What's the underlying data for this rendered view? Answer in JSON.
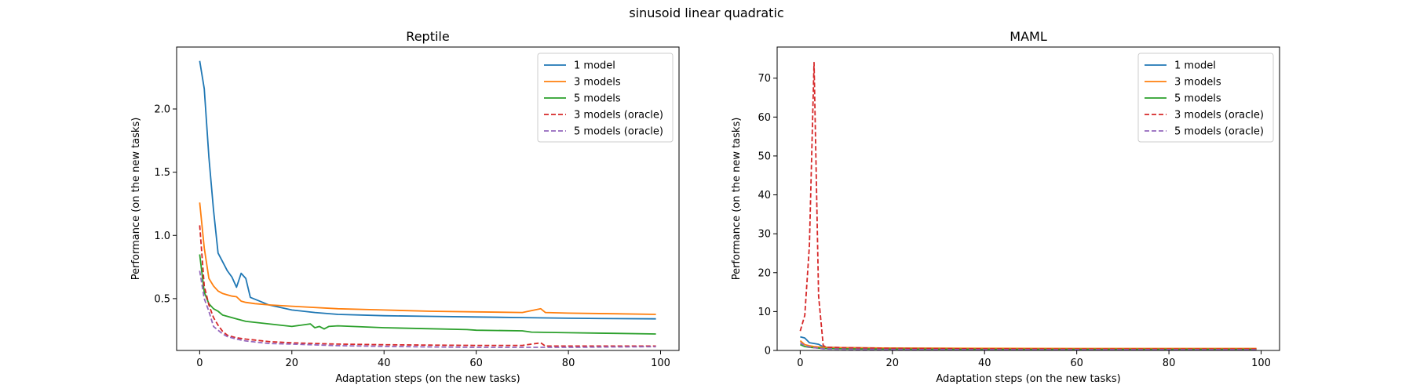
{
  "figure": {
    "suptitle": "sinusoid linear quadratic"
  },
  "chart_data": [
    {
      "type": "line",
      "title": "Reptile",
      "xlabel": "Adaptation steps (on the new tasks)",
      "ylabel": "Performance (on the new tasks)",
      "xlim": [
        -5,
        104
      ],
      "ylim": [
        0.09,
        2.49
      ],
      "xticks": [
        0,
        20,
        40,
        60,
        80,
        100
      ],
      "yticks": [
        0.5,
        1.0,
        1.5,
        2.0
      ],
      "ytick_labels": [
        "0.5",
        "1.0",
        "1.5",
        "2.0"
      ],
      "legend": "top-right",
      "series": [
        {
          "name": "1 model",
          "color": "#1f77b4",
          "dash": false,
          "points": [
            [
              0,
              2.38
            ],
            [
              1,
              2.16
            ],
            [
              2,
              1.62
            ],
            [
              3,
              1.2
            ],
            [
              4,
              0.86
            ],
            [
              5,
              0.79
            ],
            [
              6,
              0.72
            ],
            [
              7,
              0.67
            ],
            [
              8,
              0.59
            ],
            [
              9,
              0.7
            ],
            [
              10,
              0.66
            ],
            [
              11,
              0.51
            ],
            [
              13,
              0.48
            ],
            [
              15,
              0.45
            ],
            [
              20,
              0.41
            ],
            [
              25,
              0.39
            ],
            [
              30,
              0.375
            ],
            [
              40,
              0.365
            ],
            [
              50,
              0.36
            ],
            [
              60,
              0.355
            ],
            [
              70,
              0.35
            ],
            [
              80,
              0.345
            ],
            [
              90,
              0.342
            ],
            [
              99,
              0.34
            ]
          ]
        },
        {
          "name": "3 models",
          "color": "#ff7f0e",
          "dash": false,
          "points": [
            [
              0,
              1.26
            ],
            [
              1,
              0.9
            ],
            [
              2,
              0.66
            ],
            [
              3,
              0.6
            ],
            [
              4,
              0.56
            ],
            [
              5,
              0.54
            ],
            [
              6,
              0.53
            ],
            [
              7,
              0.52
            ],
            [
              8,
              0.515
            ],
            [
              9,
              0.48
            ],
            [
              10,
              0.47
            ],
            [
              12,
              0.46
            ],
            [
              15,
              0.45
            ],
            [
              20,
              0.44
            ],
            [
              30,
              0.42
            ],
            [
              40,
              0.41
            ],
            [
              50,
              0.4
            ],
            [
              60,
              0.395
            ],
            [
              70,
              0.39
            ],
            [
              74,
              0.42
            ],
            [
              75,
              0.39
            ],
            [
              80,
              0.385
            ],
            [
              90,
              0.38
            ],
            [
              99,
              0.375
            ]
          ]
        },
        {
          "name": "5 models",
          "color": "#2ca02c",
          "dash": false,
          "points": [
            [
              0,
              0.85
            ],
            [
              1,
              0.55
            ],
            [
              2,
              0.46
            ],
            [
              3,
              0.42
            ],
            [
              4,
              0.4
            ],
            [
              5,
              0.37
            ],
            [
              6,
              0.36
            ],
            [
              8,
              0.34
            ],
            [
              10,
              0.32
            ],
            [
              15,
              0.3
            ],
            [
              20,
              0.28
            ],
            [
              24,
              0.3
            ],
            [
              25,
              0.27
            ],
            [
              26,
              0.28
            ],
            [
              27,
              0.26
            ],
            [
              28,
              0.28
            ],
            [
              30,
              0.285
            ],
            [
              40,
              0.27
            ],
            [
              50,
              0.262
            ],
            [
              58,
              0.255
            ],
            [
              60,
              0.25
            ],
            [
              70,
              0.245
            ],
            [
              72,
              0.235
            ],
            [
              80,
              0.23
            ],
            [
              90,
              0.225
            ],
            [
              99,
              0.22
            ]
          ]
        },
        {
          "name": "3 models (oracle)",
          "color": "#d62728",
          "dash": true,
          "points": [
            [
              0,
              1.08
            ],
            [
              1,
              0.6
            ],
            [
              2,
              0.45
            ],
            [
              3,
              0.35
            ],
            [
              4,
              0.29
            ],
            [
              5,
              0.24
            ],
            [
              6,
              0.21
            ],
            [
              8,
              0.19
            ],
            [
              10,
              0.18
            ],
            [
              15,
              0.16
            ],
            [
              20,
              0.15
            ],
            [
              30,
              0.14
            ],
            [
              40,
              0.135
            ],
            [
              50,
              0.132
            ],
            [
              60,
              0.13
            ],
            [
              70,
              0.13
            ],
            [
              74,
              0.15
            ],
            [
              75,
              0.125
            ],
            [
              80,
              0.125
            ],
            [
              90,
              0.125
            ],
            [
              99,
              0.125
            ]
          ]
        },
        {
          "name": "5 models (oracle)",
          "color": "#9467bd",
          "dash": true,
          "points": [
            [
              0,
              0.72
            ],
            [
              1,
              0.5
            ],
            [
              2,
              0.4
            ],
            [
              3,
              0.28
            ],
            [
              4,
              0.25
            ],
            [
              5,
              0.22
            ],
            [
              6,
              0.2
            ],
            [
              8,
              0.18
            ],
            [
              10,
              0.165
            ],
            [
              15,
              0.145
            ],
            [
              20,
              0.14
            ],
            [
              30,
              0.128
            ],
            [
              40,
              0.122
            ],
            [
              50,
              0.118
            ],
            [
              60,
              0.115
            ],
            [
              70,
              0.115
            ],
            [
              80,
              0.115
            ],
            [
              90,
              0.118
            ],
            [
              99,
              0.12
            ]
          ]
        }
      ]
    },
    {
      "type": "line",
      "title": "MAML",
      "xlabel": "Adaptation steps (on the new tasks)",
      "ylabel": "Performance (on the new tasks)",
      "xlim": [
        -5,
        104
      ],
      "ylim": [
        0,
        78
      ],
      "xticks": [
        0,
        20,
        40,
        60,
        80,
        100
      ],
      "yticks": [
        0,
        10,
        20,
        30,
        40,
        50,
        60,
        70
      ],
      "ytick_labels": [
        "0",
        "10",
        "20",
        "30",
        "40",
        "50",
        "60",
        "70"
      ],
      "legend": "top-right",
      "series": [
        {
          "name": "1 model",
          "color": "#1f77b4",
          "dash": false,
          "points": [
            [
              0,
              3.5
            ],
            [
              1,
              3.2
            ],
            [
              2,
              2
            ],
            [
              3,
              1.8
            ],
            [
              4,
              1.6
            ],
            [
              5,
              0.9
            ],
            [
              6,
              0.8
            ],
            [
              10,
              0.7
            ],
            [
              20,
              0.6
            ],
            [
              40,
              0.5
            ],
            [
              60,
              0.45
            ],
            [
              80,
              0.45
            ],
            [
              99,
              0.45
            ]
          ]
        },
        {
          "name": "3 models",
          "color": "#ff7f0e",
          "dash": false,
          "points": [
            [
              0,
              2.5
            ],
            [
              1,
              1.5
            ],
            [
              2,
              1.2
            ],
            [
              3,
              1
            ],
            [
              4,
              0.9
            ],
            [
              5,
              0.8
            ],
            [
              10,
              0.7
            ],
            [
              20,
              0.6
            ],
            [
              40,
              0.55
            ],
            [
              60,
              0.5
            ],
            [
              80,
              0.5
            ],
            [
              99,
              0.5
            ]
          ]
        },
        {
          "name": "5 models",
          "color": "#2ca02c",
          "dash": false,
          "points": [
            [
              0,
              1.5
            ],
            [
              1,
              1
            ],
            [
              2,
              0.8
            ],
            [
              3,
              0.7
            ],
            [
              4,
              0.6
            ],
            [
              5,
              0.5
            ],
            [
              10,
              0.4
            ],
            [
              20,
              0.35
            ],
            [
              40,
              0.3
            ],
            [
              60,
              0.3
            ],
            [
              80,
              0.3
            ],
            [
              99,
              0.3
            ]
          ]
        },
        {
          "name": "3 models (oracle)",
          "color": "#d62728",
          "dash": true,
          "points": [
            [
              0,
              5
            ],
            [
              1,
              9
            ],
            [
              2,
              27
            ],
            [
              3,
              74
            ],
            [
              4,
              14
            ],
            [
              5,
              1.2
            ],
            [
              6,
              0.8
            ],
            [
              10,
              0.7
            ],
            [
              20,
              0.5
            ],
            [
              40,
              0.4
            ],
            [
              60,
              0.35
            ],
            [
              80,
              0.35
            ],
            [
              99,
              0.35
            ]
          ]
        },
        {
          "name": "5 models (oracle)",
          "color": "#9467bd",
          "dash": true,
          "points": [
            [
              0,
              2
            ],
            [
              1,
              1.2
            ],
            [
              2,
              0.9
            ],
            [
              3,
              0.7
            ],
            [
              4,
              0.6
            ],
            [
              5,
              0.4
            ],
            [
              10,
              0.3
            ],
            [
              20,
              0.25
            ],
            [
              40,
              0.2
            ],
            [
              60,
              0.2
            ],
            [
              80,
              0.2
            ],
            [
              99,
              0.2
            ]
          ]
        }
      ]
    }
  ]
}
